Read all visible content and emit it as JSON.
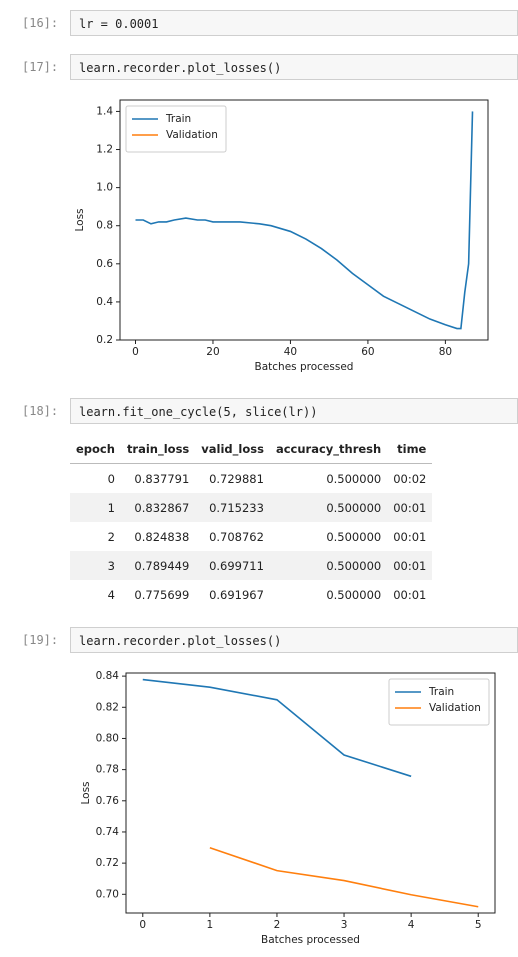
{
  "cells": [
    {
      "prompt": "[16]:",
      "code": "lr = 0.0001"
    },
    {
      "prompt": "[17]:",
      "code": "learn.recorder.plot_losses()"
    },
    {
      "prompt": "[18]:",
      "code": "learn.fit_one_cycle(5, slice(lr))"
    },
    {
      "prompt": "[19]:",
      "code": "learn.recorder.plot_losses()"
    }
  ],
  "table": {
    "header": [
      "epoch",
      "train_loss",
      "valid_loss",
      "accuracy_thresh",
      "time"
    ],
    "rows": [
      [
        "0",
        "0.837791",
        "0.729881",
        "0.500000",
        "00:02"
      ],
      [
        "1",
        "0.832867",
        "0.715233",
        "0.500000",
        "00:01"
      ],
      [
        "2",
        "0.824838",
        "0.708762",
        "0.500000",
        "00:01"
      ],
      [
        "3",
        "0.789449",
        "0.699711",
        "0.500000",
        "00:01"
      ],
      [
        "4",
        "0.775699",
        "0.691967",
        "0.500000",
        "00:01"
      ]
    ]
  },
  "chart_data": [
    {
      "type": "line",
      "xlabel": "Batches processed",
      "ylabel": "Loss",
      "legend": "upper left",
      "x": [
        0,
        2,
        4,
        6,
        8,
        10,
        13,
        16,
        18,
        20,
        25,
        27,
        32,
        35,
        40,
        44,
        48,
        52,
        56,
        60,
        64,
        68,
        72,
        76,
        80,
        83,
        84,
        85,
        86,
        87
      ],
      "series": [
        {
          "name": "Train",
          "color": "#1f77b4",
          "values": [
            0.83,
            0.83,
            0.81,
            0.82,
            0.82,
            0.83,
            0.84,
            0.83,
            0.83,
            0.82,
            0.82,
            0.82,
            0.81,
            0.8,
            0.77,
            0.73,
            0.68,
            0.62,
            0.55,
            0.49,
            0.43,
            0.39,
            0.35,
            0.31,
            0.28,
            0.26,
            0.26,
            0.45,
            0.6,
            1.4
          ]
        },
        {
          "name": "Validation",
          "color": "#ff7f0e",
          "values": [
            null,
            null,
            null,
            null,
            null,
            null,
            null,
            null,
            null,
            null,
            null,
            null,
            null,
            null,
            null,
            null,
            null,
            null,
            null,
            null,
            null,
            null,
            null,
            null,
            null,
            null,
            null,
            null,
            null,
            null
          ]
        }
      ],
      "xlim": [
        -4,
        91
      ],
      "xticks": [
        0,
        20,
        40,
        60,
        80
      ],
      "ylim": [
        0.2,
        1.46
      ],
      "yticks": [
        0.2,
        0.4,
        0.6,
        0.8,
        {
          "value": 1,
          "label": "1.0"
        },
        1.2,
        1.4
      ]
    },
    {
      "type": "line",
      "xlabel": "Batches processed",
      "ylabel": "Loss",
      "legend": "upper right",
      "x": [
        0,
        1,
        2,
        3,
        4,
        5
      ],
      "series": [
        {
          "name": "Train",
          "color": "#1f77b4",
          "values": [
            0.8378,
            0.8329,
            0.8248,
            0.7894,
            0.7757,
            null
          ]
        },
        {
          "name": "Validation",
          "color": "#ff7f0e",
          "values": [
            null,
            0.7299,
            0.7152,
            0.7088,
            0.6997,
            0.692
          ]
        }
      ],
      "xlim": [
        -0.25,
        5.25
      ],
      "xticks": [
        0,
        1,
        2,
        3,
        4,
        5
      ],
      "ylim": [
        0.688,
        0.842
      ],
      "yticks": [
        {
          "value": 0.7,
          "label": "0.70"
        },
        {
          "value": 0.72,
          "label": "0.72"
        },
        {
          "value": 0.74,
          "label": "0.74"
        },
        {
          "value": 0.76,
          "label": "0.76"
        },
        {
          "value": 0.78,
          "label": "0.78"
        },
        {
          "value": 0.8,
          "label": "0.80"
        },
        {
          "value": 0.82,
          "label": "0.82"
        },
        {
          "value": 0.84,
          "label": "0.84"
        }
      ]
    }
  ]
}
